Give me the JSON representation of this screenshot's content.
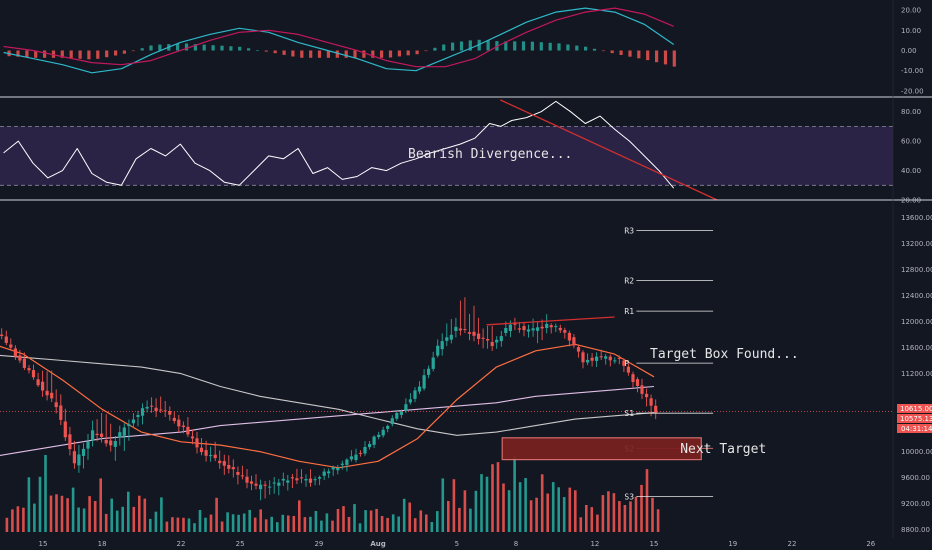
{
  "colors": {
    "background": "#131722",
    "up": "#26a69a",
    "down": "#ef5350",
    "macd_line": "#2fb8c8",
    "signal_line": "#c2185b",
    "rsi_line": "#ffffff",
    "rsi_band": "#2a2346",
    "trend_line": "#d32f2f",
    "ema_short": "#ff6e40",
    "ma_mid": "#c8c8c8",
    "ma_long": "#e1bee7",
    "target_box_fill": "#7b2020",
    "target_box_border": "#e57373",
    "price_badge": "#ef5350"
  },
  "chart_data": [
    {
      "panel": "macd",
      "type": "line",
      "y_ticks": [
        "20.00",
        "10.00",
        "0.00",
        "-10.00",
        "-20.00"
      ],
      "ylim": [
        -23,
        25
      ],
      "series": [
        {
          "role": "macd",
          "x": [
            0,
            4,
            8,
            12,
            16,
            20,
            24,
            28,
            32,
            36,
            40,
            44,
            48,
            52,
            56,
            60,
            64,
            67.5,
            71,
            75,
            79,
            83,
            87,
            91
          ],
          "y": [
            -1,
            -4,
            -7,
            -11,
            -9,
            -2,
            4,
            8,
            11,
            9,
            4,
            0,
            -4,
            -9,
            -10,
            -4,
            2,
            8,
            14,
            19,
            21,
            19,
            13,
            3
          ]
        },
        {
          "role": "signal",
          "x": [
            0,
            4,
            8,
            12,
            16,
            20,
            24,
            28,
            32,
            36,
            40,
            44,
            48,
            52,
            56,
            60,
            64,
            67.5,
            71,
            75,
            79,
            83,
            87,
            91
          ],
          "y": [
            2,
            0,
            -3,
            -6,
            -7,
            -5,
            0,
            5,
            9,
            10,
            8,
            4,
            0,
            -5,
            -8,
            -8,
            -4,
            3,
            9,
            15,
            19,
            21,
            18,
            12
          ]
        }
      ]
    },
    {
      "panel": "rsi",
      "type": "line",
      "y_ticks": [
        "80.00",
        "60.00",
        "40.00",
        "20.00"
      ],
      "ylim": [
        20,
        90
      ],
      "band": [
        30,
        70
      ],
      "annotation": "Bearish Divergence...",
      "series": [
        {
          "role": "rsi",
          "x": [
            0,
            2,
            4,
            6,
            8,
            10,
            12,
            14,
            16,
            18,
            20,
            22,
            24,
            26,
            28,
            30,
            32,
            34,
            36,
            38,
            40,
            42,
            44,
            46,
            48,
            50,
            52,
            54,
            56,
            58,
            60,
            62,
            64,
            66,
            67.5,
            69,
            71,
            73,
            75,
            77,
            79,
            81,
            83,
            85,
            87,
            89,
            91
          ],
          "y": [
            52,
            60,
            45,
            35,
            40,
            55,
            38,
            32,
            30,
            48,
            55,
            50,
            58,
            45,
            40,
            32,
            30,
            40,
            50,
            48,
            55,
            38,
            42,
            34,
            36,
            42,
            40,
            45,
            48,
            52,
            55,
            58,
            62,
            72,
            70,
            74,
            76,
            80,
            87,
            80,
            72,
            77,
            68,
            60,
            50,
            40,
            28
          ]
        }
      ]
    },
    {
      "panel": "price",
      "type": "candlestick",
      "x_tick_labels": [
        "15",
        "18",
        "22",
        "25",
        "29",
        "Aug",
        "5",
        "8",
        "12",
        "15",
        "19",
        "22",
        "26"
      ],
      "x_tick_days": [
        15,
        18,
        22,
        25,
        29,
        32,
        36,
        39,
        43,
        46,
        50,
        53,
        57
      ],
      "y_ticks": [
        "13600.00",
        "13200.00",
        "12800.00",
        "12400.00",
        "12000.00",
        "11600.00",
        "11200.00",
        "10800.00",
        "10400.00",
        "10000.00",
        "9600.00",
        "9200.00",
        "8800.00"
      ],
      "ylim": [
        8670,
        13870
      ],
      "current_price": "10615.00",
      "secondary_price": "10575.13",
      "countdown": "04:31:14",
      "pivots": [
        {
          "label": "R3",
          "value": 13400
        },
        {
          "label": "R2",
          "value": 12630
        },
        {
          "label": "R1",
          "value": 12160
        },
        {
          "label": "P",
          "value": 11360
        },
        {
          "label": "S1",
          "value": 10590
        },
        {
          "label": "S2",
          "value": 10050
        },
        {
          "label": "S3",
          "value": 9310
        }
      ],
      "annotations": [
        "Target Box Found...",
        "Next Target"
      ],
      "target_box": {
        "day_start": 38.3,
        "day_end": 48.4,
        "price_low": 10000,
        "price_high": 10150
      },
      "trend_line_high": {
        "day_start": 37.5,
        "day_end": 44.0,
        "price_start": 11950,
        "price_end": 12070
      },
      "candles": [
        {
          "o": 11900,
          "h": 12100,
          "l": 11700,
          "c": 11750
        },
        {
          "o": 11750,
          "h": 11850,
          "l": 11350,
          "c": 11400
        },
        {
          "o": 11400,
          "h": 11500,
          "l": 11000,
          "c": 11050
        },
        {
          "o": 11050,
          "h": 11400,
          "l": 10600,
          "c": 10700
        },
        {
          "o": 10700,
          "h": 10900,
          "l": 9700,
          "c": 9800
        },
        {
          "o": 9800,
          "h": 10450,
          "l": 9600,
          "c": 10300
        },
        {
          "o": 10300,
          "h": 10700,
          "l": 10000,
          "c": 10100
        },
        {
          "o": 10100,
          "h": 10550,
          "l": 9850,
          "c": 10450
        },
        {
          "o": 10450,
          "h": 10800,
          "l": 10300,
          "c": 10700
        },
        {
          "o": 10700,
          "h": 10900,
          "l": 10500,
          "c": 10600
        },
        {
          "o": 10600,
          "h": 10700,
          "l": 10250,
          "c": 10350
        },
        {
          "o": 10350,
          "h": 10500,
          "l": 9900,
          "c": 10000
        },
        {
          "o": 10000,
          "h": 10200,
          "l": 9750,
          "c": 9850
        },
        {
          "o": 9850,
          "h": 10000,
          "l": 9500,
          "c": 9650
        },
        {
          "o": 9650,
          "h": 9800,
          "l": 9350,
          "c": 9450
        },
        {
          "o": 9450,
          "h": 9600,
          "l": 9250,
          "c": 9500
        },
        {
          "o": 9500,
          "h": 9700,
          "l": 9350,
          "c": 9600
        },
        {
          "o": 9600,
          "h": 9750,
          "l": 9450,
          "c": 9550
        },
        {
          "o": 9550,
          "h": 9750,
          "l": 9450,
          "c": 9700
        },
        {
          "o": 9700,
          "h": 9900,
          "l": 9600,
          "c": 9850
        },
        {
          "o": 9850,
          "h": 10150,
          "l": 9800,
          "c": 10050
        },
        {
          "o": 10050,
          "h": 10400,
          "l": 10000,
          "c": 10350
        },
        {
          "o": 10350,
          "h": 10700,
          "l": 10300,
          "c": 10650
        },
        {
          "o": 10650,
          "h": 11100,
          "l": 10600,
          "c": 11000
        },
        {
          "o": 11000,
          "h": 11700,
          "l": 10950,
          "c": 11600
        },
        {
          "o": 11600,
          "h": 12150,
          "l": 11500,
          "c": 11900
        },
        {
          "o": 11900,
          "h": 12400,
          "l": 11700,
          "c": 11800
        },
        {
          "o": 11800,
          "h": 12050,
          "l": 11500,
          "c": 11650
        },
        {
          "o": 11650,
          "h": 12050,
          "l": 11550,
          "c": 11950
        },
        {
          "o": 11950,
          "h": 12050,
          "l": 11750,
          "c": 11850
        },
        {
          "o": 11850,
          "h": 12100,
          "l": 11650,
          "c": 11950
        },
        {
          "o": 11950,
          "h": 12000,
          "l": 11750,
          "c": 11850
        },
        {
          "o": 11850,
          "h": 11900,
          "l": 11300,
          "c": 11400
        },
        {
          "o": 11400,
          "h": 11550,
          "l": 11300,
          "c": 11450
        },
        {
          "o": 11450,
          "h": 11500,
          "l": 11300,
          "c": 11400
        },
        {
          "o": 11400,
          "h": 11450,
          "l": 10900,
          "c": 11000
        },
        {
          "o": 11000,
          "h": 11100,
          "l": 10450,
          "c": 10615
        }
      ],
      "series": [
        {
          "role": "ema_short",
          "x": [
            12,
            14,
            16,
            18,
            20,
            22,
            24,
            26,
            28,
            30,
            32,
            34,
            36,
            38,
            40,
            42,
            44,
            46
          ],
          "y": [
            11700,
            11500,
            11100,
            10650,
            10300,
            10150,
            10100,
            10000,
            9850,
            9750,
            9850,
            10200,
            10800,
            11300,
            11550,
            11650,
            11500,
            11150
          ]
        },
        {
          "role": "ma_mid",
          "x": [
            12,
            14,
            16,
            18,
            20,
            22,
            24,
            26,
            28,
            30,
            32,
            34,
            36,
            38,
            40,
            42,
            44,
            46
          ],
          "y": [
            11500,
            11450,
            11400,
            11350,
            11300,
            11200,
            11000,
            10850,
            10750,
            10650,
            10500,
            10350,
            10250,
            10300,
            10400,
            10500,
            10550,
            10600
          ]
        },
        {
          "role": "ma_long",
          "x": [
            12,
            14,
            16,
            18,
            20,
            22,
            24,
            26,
            28,
            30,
            32,
            34,
            36,
            38,
            40,
            42,
            44,
            46
          ],
          "y": [
            9900,
            10000,
            10100,
            10200,
            10250,
            10300,
            10400,
            10450,
            10500,
            10550,
            10600,
            10650,
            10700,
            10750,
            10850,
            10900,
            10950,
            11000
          ]
        },
        {
          "role": "volume",
          "x": [
            13,
            14,
            15,
            16,
            17,
            18,
            19,
            20,
            21,
            22,
            23,
            24,
            25,
            26,
            27,
            28,
            29,
            30,
            31,
            32,
            33,
            34,
            35,
            36,
            37,
            38,
            39,
            40,
            41,
            42,
            43,
            44,
            45,
            46
          ],
          "y": [
            3,
            6,
            8,
            4,
            5,
            3,
            4,
            3,
            2,
            2,
            3,
            2,
            2,
            2,
            3,
            2,
            2,
            3,
            2,
            2,
            3,
            2,
            5,
            4,
            6,
            7,
            5,
            6,
            4,
            3,
            4,
            3,
            6,
            3
          ]
        }
      ]
    }
  ]
}
